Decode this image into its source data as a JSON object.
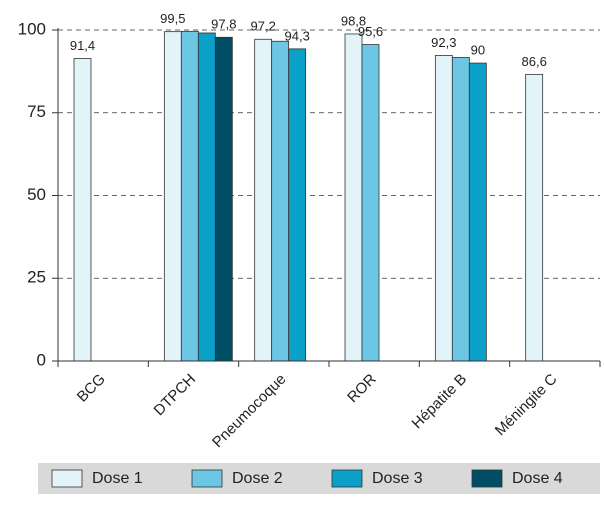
{
  "chart_data": {
    "type": "bar",
    "categories": [
      "BCG",
      "DTPCH",
      "Pneumocoque",
      "ROR",
      "Hépatite B",
      "Méningite C"
    ],
    "series": [
      {
        "name": "Dose 1",
        "color": "#e2f3fa",
        "values": [
          91.4,
          99.5,
          97.2,
          98.8,
          92.3,
          86.6
        ],
        "value_labels": [
          "91,4",
          "99,5",
          "97,2",
          "98,8",
          "92,3",
          "86,6"
        ]
      },
      {
        "name": "Dose 2",
        "color": "#6cc6e4",
        "values": [
          null,
          99.6,
          96.6,
          95.6,
          91.7,
          null
        ],
        "value_labels": [
          null,
          null,
          null,
          "95,6",
          null,
          null
        ]
      },
      {
        "name": "Dose 3",
        "color": "#0aa0c8",
        "values": [
          null,
          99.1,
          94.3,
          null,
          90,
          null
        ],
        "value_labels": [
          null,
          null,
          "94,3",
          null,
          "90",
          null
        ]
      },
      {
        "name": "Dose 4",
        "color": "#004d66",
        "values": [
          null,
          97.8,
          null,
          null,
          null,
          null
        ],
        "value_labels": [
          null,
          "97,8",
          null,
          null,
          null,
          null
        ]
      }
    ],
    "ylim": [
      0,
      100
    ],
    "yticks": [
      0,
      25,
      50,
      75,
      100
    ],
    "grid": true
  }
}
